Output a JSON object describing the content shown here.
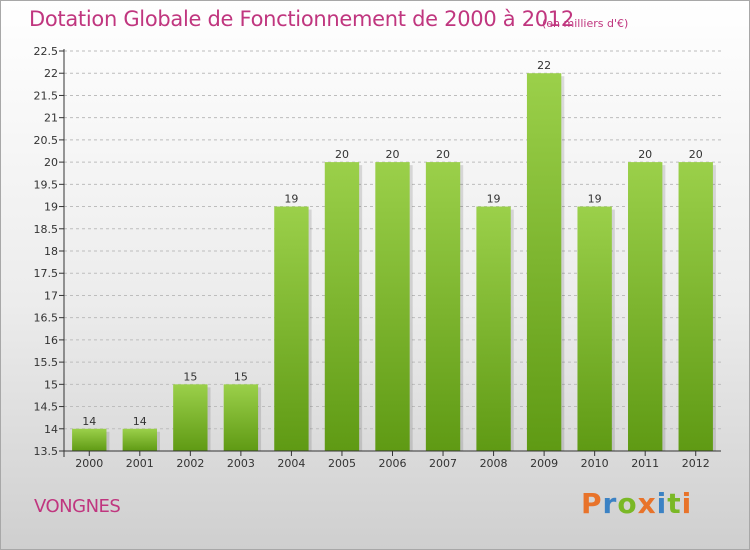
{
  "header": {
    "title": "Dotation Globale de Fonctionnement de 2000 à 2012",
    "subtitle": "(en milliers d'€)"
  },
  "footer": {
    "place": "VONGNES",
    "logo": "Proxiti"
  },
  "colors": {
    "title": "#c0367f",
    "bar_top": "#9bd04a",
    "bar_bottom": "#5f9a14",
    "axis": "#333333",
    "grid": "#bdbdbd"
  },
  "chart_data": {
    "type": "bar",
    "title": "Dotation Globale de Fonctionnement de 2000 à 2012",
    "subtitle": "(en milliers d'€)",
    "xlabel": "",
    "ylabel": "",
    "categories": [
      "2000",
      "2001",
      "2002",
      "2003",
      "2004",
      "2005",
      "2006",
      "2007",
      "2008",
      "2009",
      "2010",
      "2011",
      "2012"
    ],
    "values": [
      14,
      14,
      15,
      15,
      19,
      20,
      20,
      20,
      19,
      22,
      19,
      20,
      20
    ],
    "ylim": [
      13.5,
      22.5
    ],
    "yticks": [
      "13.5",
      "14",
      "14.5",
      "15",
      "15.5",
      "16",
      "16.5",
      "17",
      "17.5",
      "18",
      "18.5",
      "19",
      "19.5",
      "20",
      "20.5",
      "21",
      "21.5",
      "22",
      "22.5"
    ],
    "grid": "horizontal dashed",
    "legend": "none"
  }
}
